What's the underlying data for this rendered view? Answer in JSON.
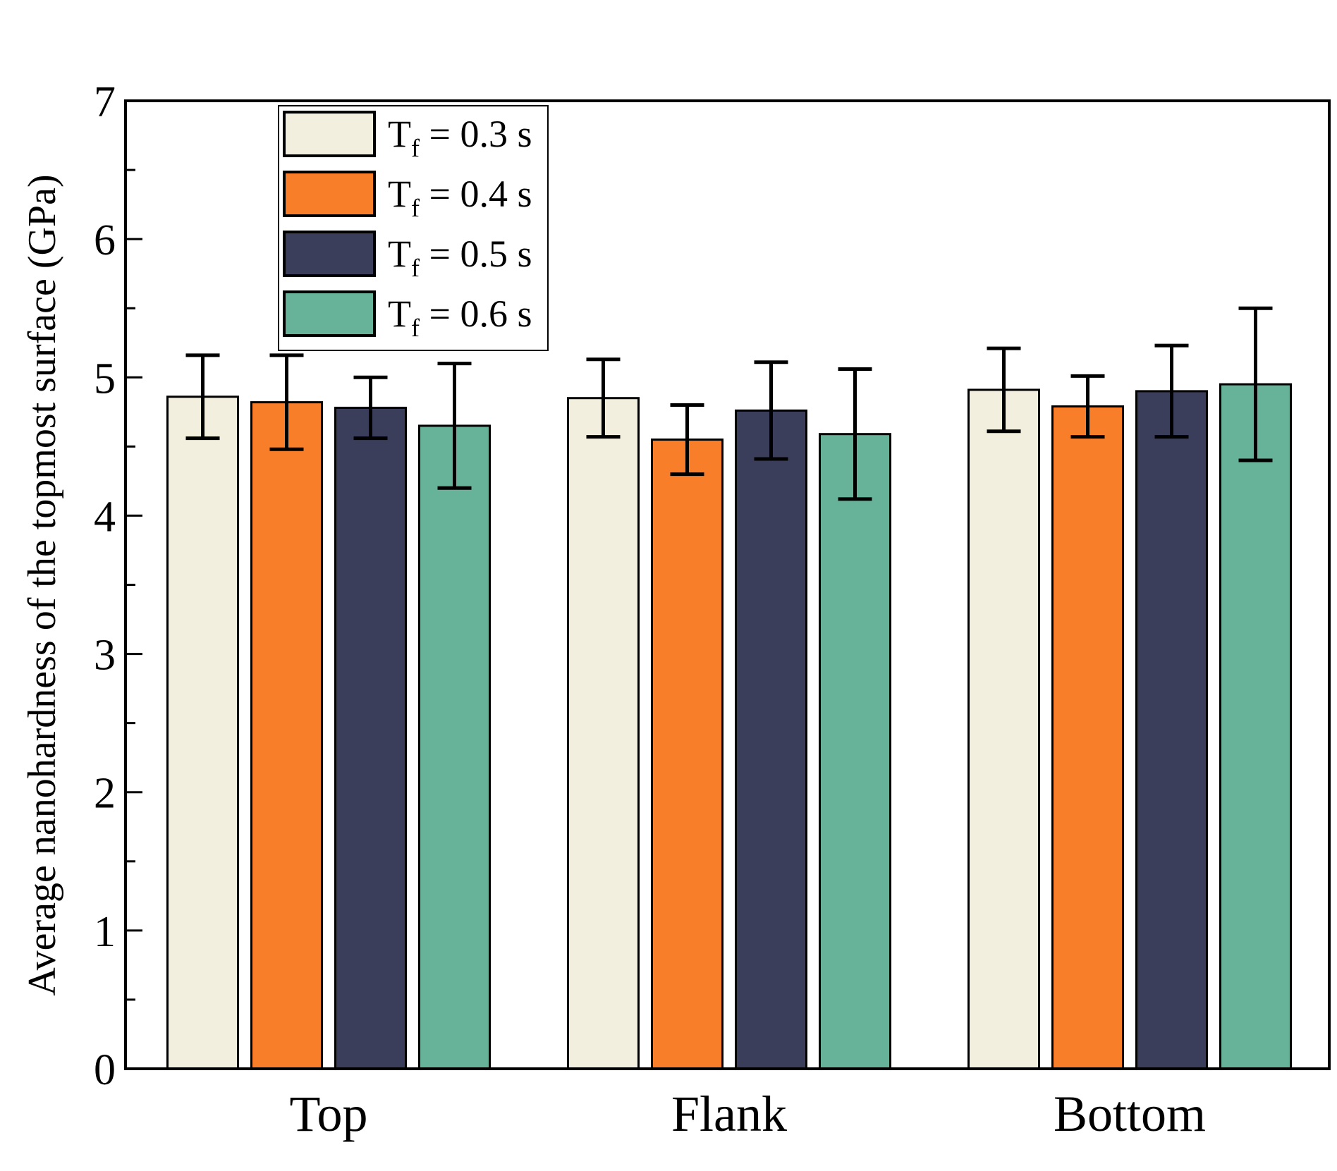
{
  "chart_data": {
    "type": "bar",
    "title": "",
    "xlabel": "",
    "ylabel": "Average nanohardness of the topmost surface (GPa)",
    "ylim": [
      0,
      7
    ],
    "yticks": [
      "0",
      "1",
      "2",
      "3",
      "4",
      "5",
      "6",
      "7"
    ],
    "categories": [
      "Top",
      "Flank",
      "Bottom"
    ],
    "legend_position": "top-left",
    "series": [
      {
        "name": "Tf = 0.3 s",
        "label_main": "T",
        "label_sub": "f",
        "label_rest": " = 0.3 s",
        "color": "#f3efdf",
        "values": [
          4.86,
          4.85,
          4.91
        ],
        "errors": [
          0.3,
          0.28,
          0.3
        ]
      },
      {
        "name": "Tf = 0.4 s",
        "label_main": "T",
        "label_sub": "f",
        "label_rest": " = 0.4 s",
        "color": "#f97e2a",
        "values": [
          4.82,
          4.55,
          4.79
        ],
        "errors": [
          0.34,
          0.25,
          0.22
        ]
      },
      {
        "name": "Tf = 0.5 s",
        "label_main": "T",
        "label_sub": "f",
        "label_rest": " = 0.5 s",
        "color": "#3b3e5a",
        "values": [
          4.78,
          4.76,
          4.9
        ],
        "errors": [
          0.22,
          0.35,
          0.33
        ]
      },
      {
        "name": "Tf = 0.6 s",
        "label_main": "T",
        "label_sub": "f",
        "label_rest": " = 0.6 s",
        "color": "#66b39a",
        "values": [
          4.65,
          4.59,
          4.95
        ],
        "errors": [
          0.45,
          0.47,
          0.55
        ]
      }
    ]
  }
}
